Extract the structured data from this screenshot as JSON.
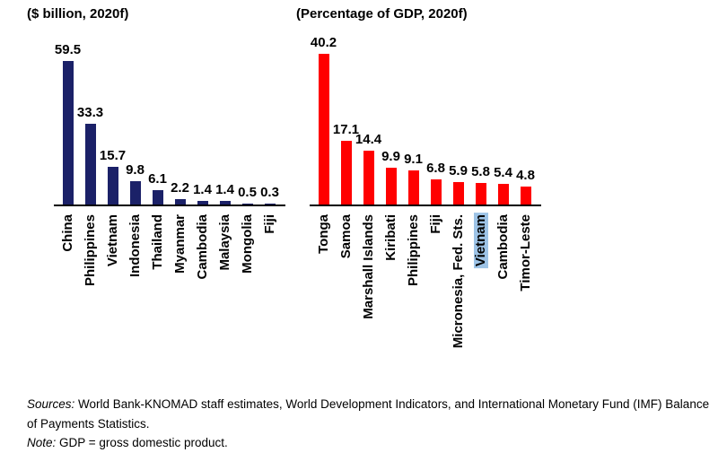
{
  "chart_data": [
    {
      "type": "bar",
      "title": "($ billion, 2020f)",
      "categories": [
        "China",
        "Philippines",
        "Vietnam",
        "Indonesia",
        "Thailand",
        "Myanmar",
        "Cambodia",
        "Malaysia",
        "Mongolia",
        "Fiji"
      ],
      "values": [
        59.5,
        33.3,
        15.7,
        9.8,
        6.1,
        2.2,
        1.4,
        1.4,
        0.5,
        0.3
      ],
      "bar_color": "#1B2168",
      "value_label_decimals": 1,
      "xlabel": "",
      "ylabel": "",
      "ylim": [
        0,
        59.5
      ],
      "grid": false,
      "legend": false,
      "category_label_rotation": 90,
      "highlight": null
    },
    {
      "type": "bar",
      "title": "(Percentage of GDP, 2020f)",
      "categories": [
        "Tonga",
        "Samoa",
        "Marshall Islands",
        "Kiribati",
        "Philippines",
        "Fiji",
        "Micronesia, Fed. Sts.",
        "Vietnam",
        "Cambodia",
        "Timor-Leste"
      ],
      "values": [
        40.2,
        17.1,
        14.4,
        9.9,
        9.1,
        6.8,
        5.9,
        5.8,
        5.4,
        4.8
      ],
      "bar_color": "#FF0000",
      "value_label_decimals": 1,
      "xlabel": "",
      "ylabel": "",
      "ylim": [
        0,
        40.2
      ],
      "grid": false,
      "legend": false,
      "category_label_rotation": 90,
      "highlight": {
        "category": "Vietnam",
        "color": "#9DC3E6"
      }
    }
  ],
  "footer": {
    "sources_label": "Sources:",
    "sources_text": " World Bank-KNOMAD staff estimates, World Development Indicators, and International Monetary Fund (IMF) Balance of Payments Statistics.",
    "note_label": "Note:",
    "note_text": " GDP = gross domestic product."
  }
}
